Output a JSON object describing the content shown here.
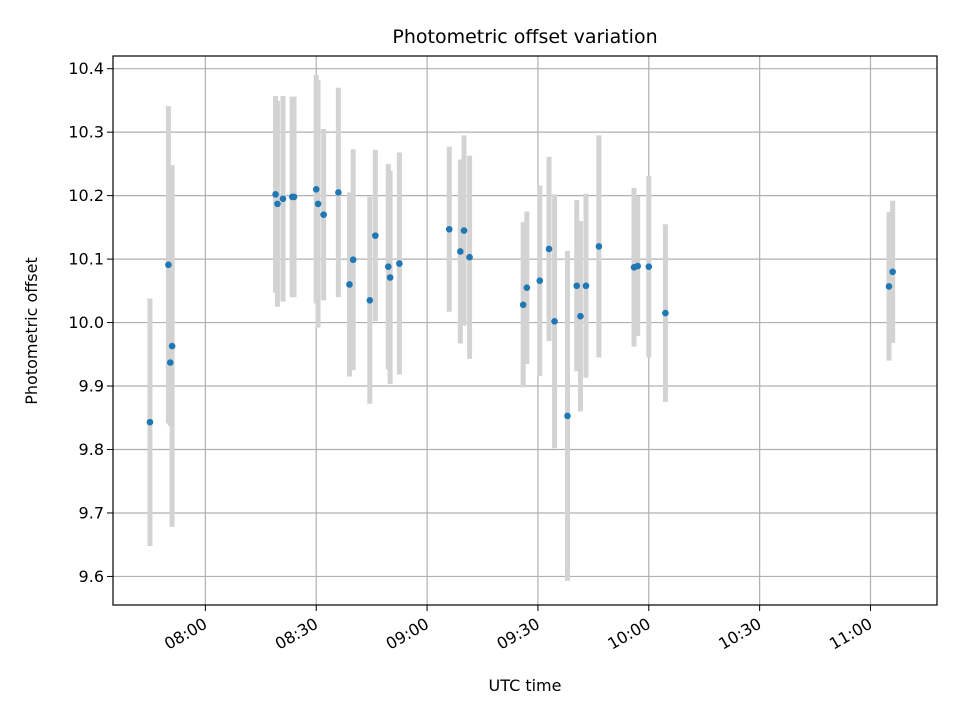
{
  "chart_data": {
    "type": "scatter",
    "title": "Photometric offset variation",
    "xlabel": "UTC time",
    "ylabel": "Photometric offset",
    "grid": true,
    "x_unit": "UTC HH:MM",
    "xlim": [
      "07:35",
      "11:18"
    ],
    "ylim": [
      9.555,
      10.42
    ],
    "x_ticks": [
      "08:00",
      "08:30",
      "09:00",
      "09:30",
      "10:00",
      "10:30",
      "11:00"
    ],
    "y_ticks": [
      9.6,
      9.7,
      9.8,
      9.9,
      10.0,
      10.1,
      10.2,
      10.3,
      10.4
    ],
    "y_tick_labels": [
      "9.6",
      "9.7",
      "9.8",
      "9.9",
      "10.0",
      "10.1",
      "10.2",
      "10.3",
      "10.4"
    ],
    "colors": {
      "point": "#1f77b4",
      "errorbar": "#d3d3d3",
      "grid": "#b0b0b0"
    },
    "points": [
      {
        "x": "07:45",
        "y": 9.843,
        "err": 0.195
      },
      {
        "x": "07:50",
        "y": 10.091,
        "err": 0.25
      },
      {
        "x": "07:50.5",
        "y": 9.937,
        "err": 0.1
      },
      {
        "x": "07:51",
        "y": 9.963,
        "err": 0.285
      },
      {
        "x": "08:19",
        "y": 10.202,
        "err": 0.155
      },
      {
        "x": "08:19.5",
        "y": 10.187,
        "err": 0.162
      },
      {
        "x": "08:21",
        "y": 10.195,
        "err": 0.162
      },
      {
        "x": "08:23.5",
        "y": 10.198,
        "err": 0.158
      },
      {
        "x": "08:24",
        "y": 10.198,
        "err": 0.158
      },
      {
        "x": "08:30",
        "y": 10.21,
        "err": 0.18
      },
      {
        "x": "08:30.5",
        "y": 10.187,
        "err": 0.195
      },
      {
        "x": "08:32",
        "y": 10.17,
        "err": 0.135
      },
      {
        "x": "08:36",
        "y": 10.205,
        "err": 0.165
      },
      {
        "x": "08:39",
        "y": 10.06,
        "err": 0.145
      },
      {
        "x": "08:40",
        "y": 10.099,
        "err": 0.174
      },
      {
        "x": "08:44.5",
        "y": 10.035,
        "err": 0.163
      },
      {
        "x": "08:46",
        "y": 10.137,
        "err": 0.135
      },
      {
        "x": "08:49.5",
        "y": 10.088,
        "err": 0.162
      },
      {
        "x": "08:50",
        "y": 10.071,
        "err": 0.168
      },
      {
        "x": "08:52.5",
        "y": 10.093,
        "err": 0.175
      },
      {
        "x": "09:06",
        "y": 10.147,
        "err": 0.13
      },
      {
        "x": "09:09",
        "y": 10.112,
        "err": 0.145
      },
      {
        "x": "09:10",
        "y": 10.145,
        "err": 0.15
      },
      {
        "x": "09:11.5",
        "y": 10.103,
        "err": 0.16
      },
      {
        "x": "09:26",
        "y": 10.028,
        "err": 0.13
      },
      {
        "x": "09:27",
        "y": 10.055,
        "err": 0.12
      },
      {
        "x": "09:30.5",
        "y": 10.066,
        "err": 0.15
      },
      {
        "x": "09:33",
        "y": 10.116,
        "err": 0.145
      },
      {
        "x": "09:34.5",
        "y": 10.002,
        "err": 0.2
      },
      {
        "x": "09:38",
        "y": 9.853,
        "err": 0.26
      },
      {
        "x": "09:40.5",
        "y": 10.058,
        "err": 0.135
      },
      {
        "x": "09:41.5",
        "y": 10.01,
        "err": 0.15
      },
      {
        "x": "09:43",
        "y": 10.058,
        "err": 0.145
      },
      {
        "x": "09:46.5",
        "y": 10.12,
        "err": 0.175
      },
      {
        "x": "09:56",
        "y": 10.087,
        "err": 0.125
      },
      {
        "x": "09:57",
        "y": 10.089,
        "err": 0.11
      },
      {
        "x": "10:00",
        "y": 10.088,
        "err": 0.143
      },
      {
        "x": "10:04.5",
        "y": 10.015,
        "err": 0.14
      },
      {
        "x": "11:05",
        "y": 10.057,
        "err": 0.117
      },
      {
        "x": "11:06",
        "y": 10.08,
        "err": 0.112
      }
    ]
  }
}
